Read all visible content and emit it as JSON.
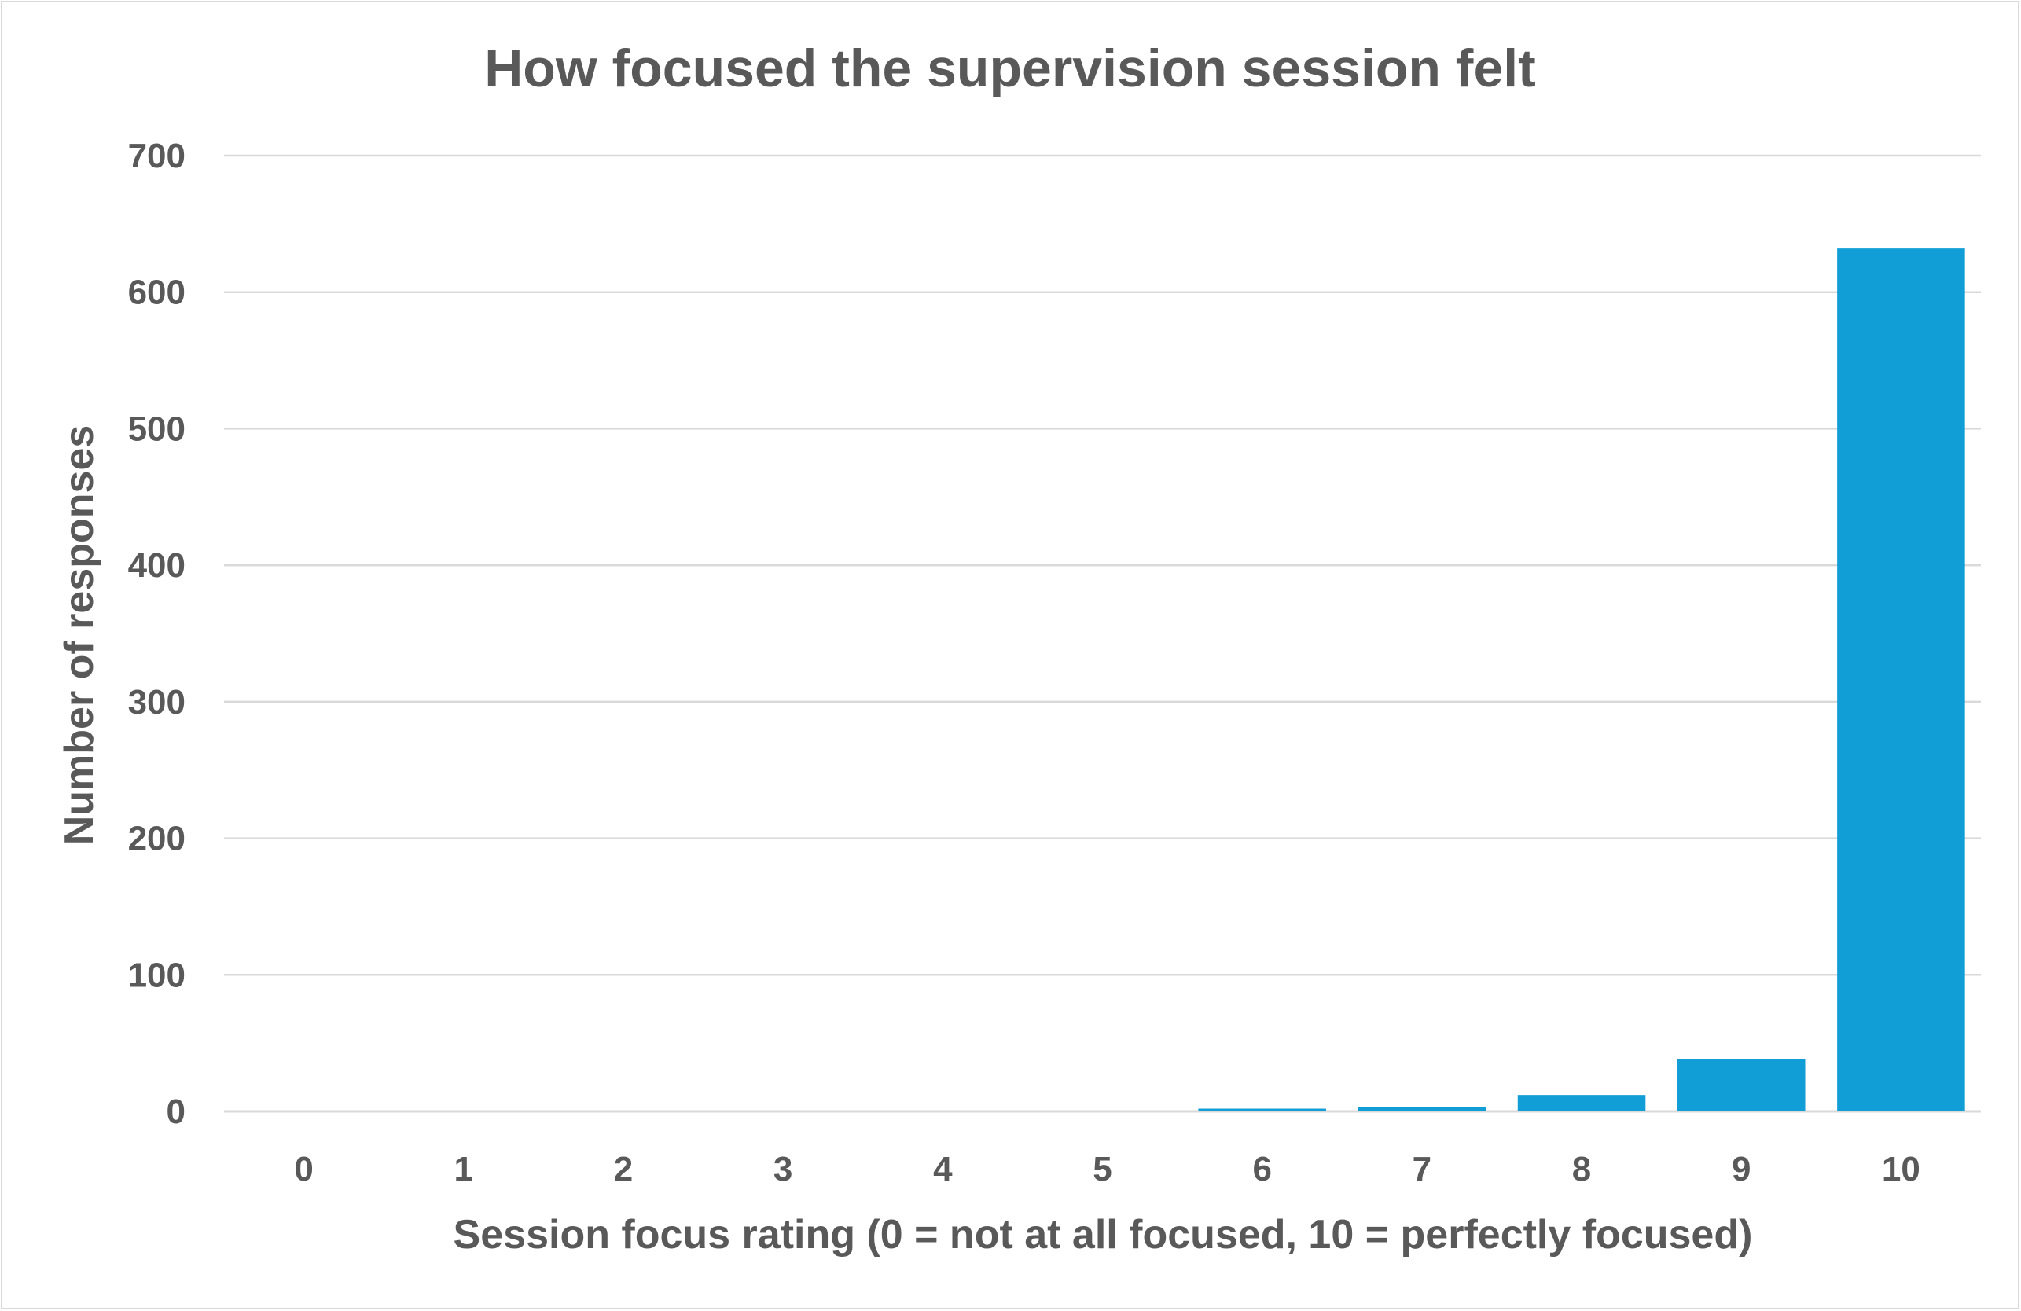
{
  "chart_data": {
    "type": "bar",
    "title": "How focused the supervision session felt",
    "xlabel": "Session focus rating (0 = not at all focused, 10 = perfectly focused)",
    "ylabel": "Number of responses",
    "categories": [
      "0",
      "1",
      "2",
      "3",
      "4",
      "5",
      "6",
      "7",
      "8",
      "9",
      "10"
    ],
    "values": [
      0,
      0,
      0,
      0,
      0,
      0,
      2,
      3,
      12,
      38,
      632
    ],
    "ylim": [
      0,
      700
    ],
    "yticks": [
      "0",
      "100",
      "200",
      "300",
      "400",
      "500",
      "600",
      "700"
    ],
    "grid": true,
    "legend": "none",
    "bar_color": "#119ed6",
    "grid_color": "#d9d9d9",
    "text_color": "#595959"
  }
}
